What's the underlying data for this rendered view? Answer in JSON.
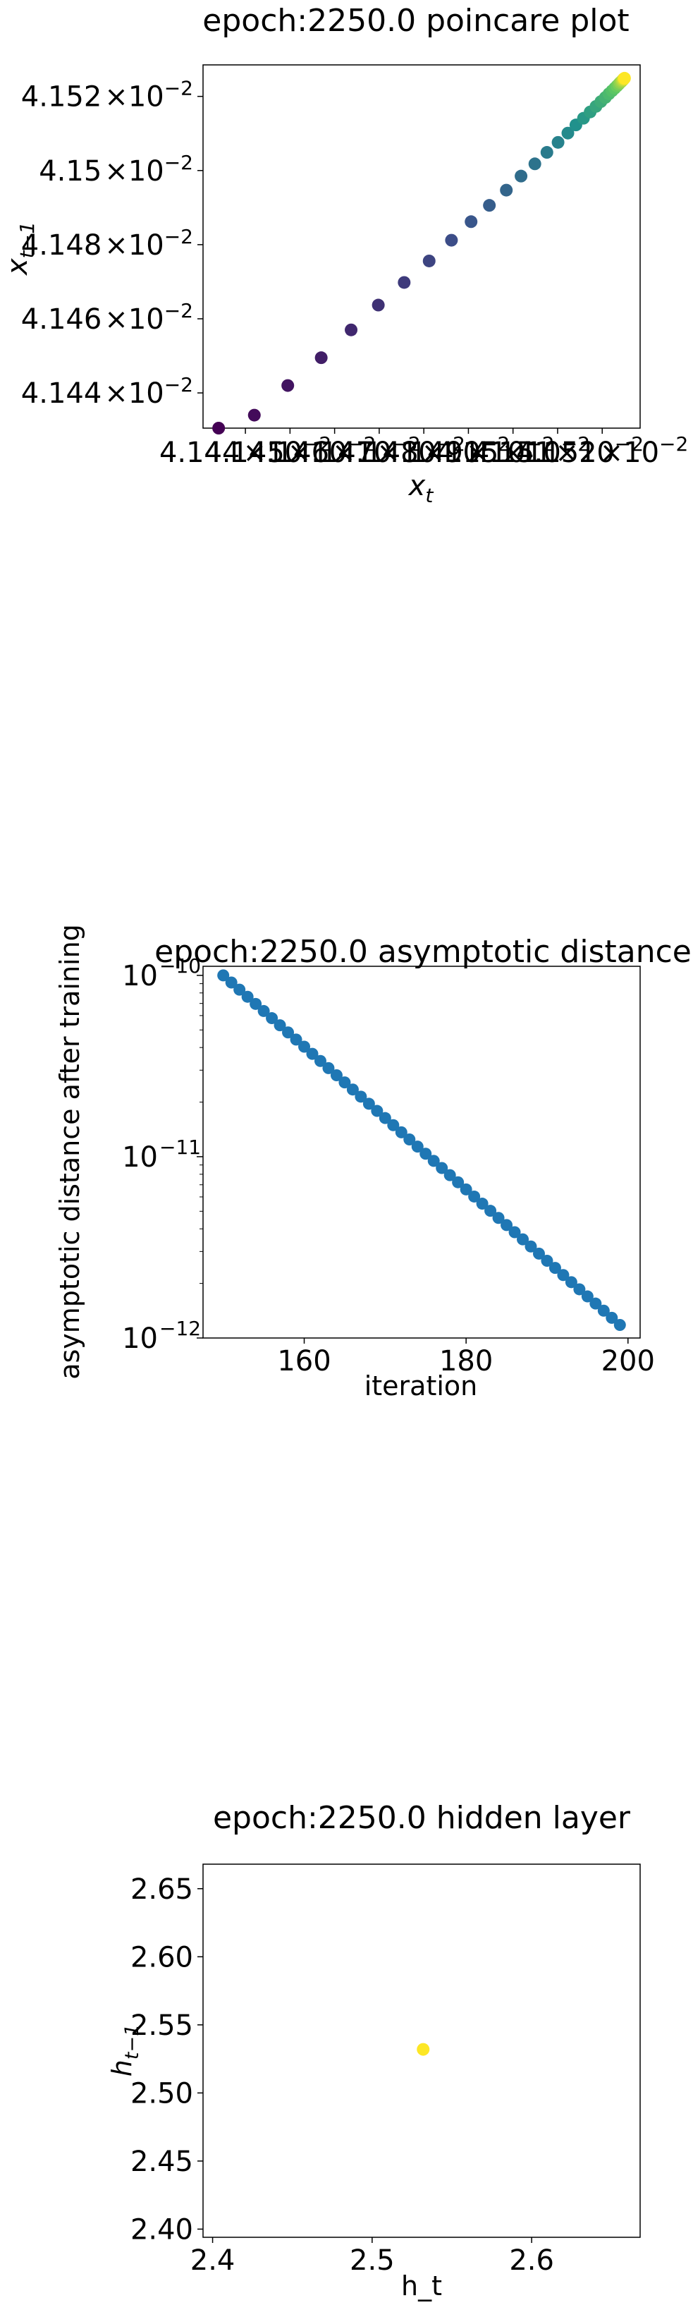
{
  "chart_data": [
    {
      "type": "scatter",
      "title": "epoch:2250.0 poincare plot",
      "xlabel": "x",
      "xlabel_sub": "t",
      "ylabel": "x",
      "ylabel_sub": "t−1",
      "tick_mult": "×10",
      "tick_exp": "−2",
      "xlim": [
        4.14305,
        4.15285
      ],
      "ylim": [
        4.14305,
        4.15285
      ],
      "ytick_mantissas": [
        "4.144",
        "4.146",
        "4.148",
        "4.15",
        "4.152"
      ],
      "ytick_values": [
        4.144,
        4.146,
        4.148,
        4.15,
        4.152
      ],
      "xtick_mantissas": [
        "4.144",
        "4.145",
        "4.146",
        "4.147",
        "4.148",
        "4.149",
        "4.15",
        "4.151",
        "4.152"
      ],
      "xtick_values": [
        4.144,
        4.145,
        4.146,
        4.147,
        4.148,
        4.149,
        4.15,
        4.151,
        4.152
      ],
      "colormap": [
        "#440154",
        "#3b528b",
        "#21918c",
        "#5ec962",
        "#fde725"
      ],
      "x": [
        4.1434,
        4.1442,
        4.14495,
        4.1457,
        4.14637,
        4.14698,
        4.14756,
        4.14812,
        4.14862,
        4.14906,
        4.14947,
        4.14985,
        4.15018,
        4.15049,
        4.15076,
        4.15101,
        4.15123,
        4.15141,
        4.15158,
        4.15173,
        4.15186,
        4.15197,
        4.15207,
        4.15215,
        4.15222,
        4.15228,
        4.15233,
        4.15237,
        4.1524,
        4.15243,
        4.15245,
        4.15247,
        4.15248,
        4.15249,
        4.1525
      ],
      "y": [
        4.14305,
        4.1434,
        4.1442,
        4.14495,
        4.1457,
        4.14637,
        4.14698,
        4.14756,
        4.14812,
        4.14862,
        4.14906,
        4.14947,
        4.14985,
        4.15018,
        4.15049,
        4.15076,
        4.15101,
        4.15123,
        4.15141,
        4.15158,
        4.15173,
        4.15186,
        4.15197,
        4.15207,
        4.15215,
        4.15222,
        4.15228,
        4.15233,
        4.15237,
        4.1524,
        4.15243,
        4.15245,
        4.15247,
        4.15248,
        4.15249
      ]
    },
    {
      "type": "scatter",
      "title": "epoch:2250.0 asymptotic distance",
      "xlabel": "iteration",
      "ylabel": "asymptotic distance after training",
      "yscale": "log",
      "xlim": [
        147.5,
        201.5
      ],
      "ylim_exp": [
        -12,
        -9.95
      ],
      "xticks": [
        "160",
        "180",
        "200"
      ],
      "xtick_values": [
        160,
        180,
        200
      ],
      "ytick_base": "10",
      "ytick_exps": [
        "−12",
        "−11",
        "−10"
      ],
      "ytick_values": [
        -12,
        -11,
        -10
      ],
      "color": "#1f77b4",
      "x_start": 150,
      "x_end": 199,
      "y_start": 1e-10,
      "y_end": 1.18e-12
    },
    {
      "type": "scatter",
      "title": "epoch:2250.0 hidden layer",
      "xlabel": "h_t",
      "ylabel": "h",
      "ylabel_sub": "t−1",
      "xlim": [
        2.394,
        2.668
      ],
      "ylim": [
        2.394,
        2.668
      ],
      "xticks": [
        "2.4",
        "2.5",
        "2.6"
      ],
      "xtick_values": [
        2.4,
        2.5,
        2.6
      ],
      "yticks": [
        "2.40",
        "2.45",
        "2.50",
        "2.55",
        "2.60",
        "2.65"
      ],
      "ytick_values": [
        2.4,
        2.45,
        2.5,
        2.55,
        2.6,
        2.65
      ],
      "color": "#fde725",
      "x": [
        2.532
      ],
      "y": [
        2.532
      ]
    }
  ]
}
